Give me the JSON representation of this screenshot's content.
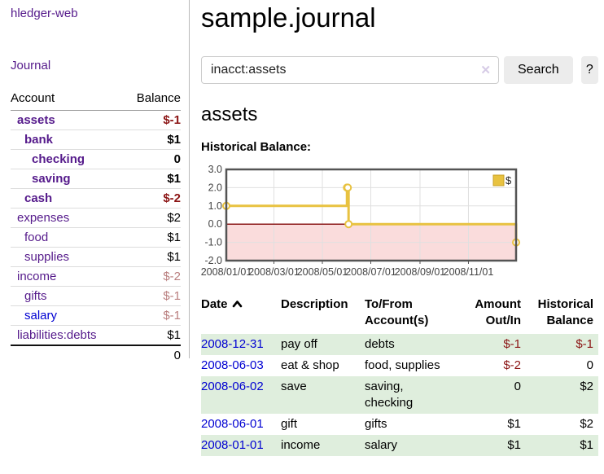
{
  "sidebar": {
    "brand": "hledger-web",
    "journal_link": "Journal",
    "columns": {
      "account": "Account",
      "balance": "Balance"
    },
    "accounts": [
      {
        "name": "assets",
        "indent": 1,
        "balance": "$-1",
        "bold": true,
        "amount_style": "negative-strong",
        "link_color": "purple"
      },
      {
        "name": "bank",
        "indent": 2,
        "balance": "$1",
        "bold": true,
        "amount_style": "normal",
        "link_color": "purple"
      },
      {
        "name": "checking",
        "indent": 3,
        "balance": "0",
        "bold": true,
        "amount_style": "normal",
        "link_color": "purple"
      },
      {
        "name": "saving",
        "indent": 3,
        "balance": "$1",
        "bold": true,
        "amount_style": "normal",
        "link_color": "purple"
      },
      {
        "name": "cash",
        "indent": 2,
        "balance": "$-2",
        "bold": true,
        "amount_style": "negative-strong",
        "link_color": "purple"
      },
      {
        "name": "expenses",
        "indent": 1,
        "balance": "$2",
        "bold": false,
        "amount_style": "normal",
        "link_color": "purple"
      },
      {
        "name": "food",
        "indent": 2,
        "balance": "$1",
        "bold": false,
        "amount_style": "normal",
        "link_color": "purple"
      },
      {
        "name": "supplies",
        "indent": 2,
        "balance": "$1",
        "bold": false,
        "amount_style": "normal",
        "link_color": "purple"
      },
      {
        "name": "income",
        "indent": 1,
        "balance": "$-2",
        "bold": false,
        "amount_style": "negative-soft",
        "link_color": "purple"
      },
      {
        "name": "gifts",
        "indent": 2,
        "balance": "$-1",
        "bold": false,
        "amount_style": "negative-soft",
        "link_color": "purple"
      },
      {
        "name": "salary",
        "indent": 2,
        "balance": "$-1",
        "bold": false,
        "amount_style": "negative-soft",
        "link_color": "blue"
      },
      {
        "name": "liabilities:debts",
        "indent": 1,
        "balance": "$1",
        "bold": false,
        "amount_style": "normal",
        "link_color": "purple"
      }
    ],
    "total": "0"
  },
  "header": {
    "title": "sample.journal"
  },
  "search": {
    "value": "inacct:assets",
    "clear_icon": "✕",
    "button_label": "Search",
    "help_label": "?"
  },
  "account_page": {
    "heading": "assets",
    "chart_label": "Historical Balance:"
  },
  "chart_data": {
    "type": "line",
    "title": "Historical Balance:",
    "step": true,
    "x_type": "date",
    "xlim": [
      "2008-01-01",
      "2008-12-31"
    ],
    "x_domain_days": [
      0,
      365
    ],
    "ylim": [
      -2,
      3
    ],
    "yticks": [
      3.0,
      2.0,
      1.0,
      0.0,
      -1.0,
      -2.0
    ],
    "xticks": [
      {
        "label": "2008/01/01",
        "day": 0
      },
      {
        "label": "2008/03/01",
        "day": 60
      },
      {
        "label": "2008/05/01",
        "day": 121
      },
      {
        "label": "2008/07/01",
        "day": 182
      },
      {
        "label": "2008/09/01",
        "day": 244
      },
      {
        "label": "2008/11/01",
        "day": 305
      }
    ],
    "series": [
      {
        "name": "$",
        "color": "#e8c240",
        "marker_fill": "#ffffff",
        "points": [
          {
            "date": "2008-01-01",
            "day": 0,
            "value": 1
          },
          {
            "date": "2008-06-01",
            "day": 152,
            "value": 2
          },
          {
            "date": "2008-06-02",
            "day": 153,
            "value": 2
          },
          {
            "date": "2008-06-03",
            "day": 154,
            "value": 0
          },
          {
            "date": "2008-12-31",
            "day": 365,
            "value": -1
          }
        ]
      }
    ],
    "negative_region": {
      "ymin": -2,
      "ymax": 0,
      "fill": "#fadcdc",
      "boundary_color": "#8b1a1a"
    },
    "legend": {
      "position": "top-right",
      "label": "$",
      "swatch_color": "#e8c240",
      "swatch_border": "#c9a227"
    },
    "grid": true,
    "plot_border_color": "#545454",
    "grid_color": "#e0e0e0",
    "tick_label_color": "#444444"
  },
  "register": {
    "columns": [
      {
        "label": "Date",
        "align": "left",
        "sorted": "asc"
      },
      {
        "label": "Description",
        "align": "left"
      },
      {
        "label": "To/From Account(s)",
        "align": "left"
      },
      {
        "label": "Amount Out/In",
        "align": "right"
      },
      {
        "label": "Historical Balance",
        "align": "right"
      }
    ],
    "rows": [
      {
        "date": "2008-12-31",
        "description": "pay off",
        "accounts": "debts",
        "amount": "$-1",
        "amount_negative": true,
        "balance": "$-1",
        "balance_negative": true
      },
      {
        "date": "2008-06-03",
        "description": "eat & shop",
        "accounts": "food, supplies",
        "amount": "$-2",
        "amount_negative": true,
        "balance": "0",
        "balance_negative": false
      },
      {
        "date": "2008-06-02",
        "description": "save",
        "accounts": "saving, checking",
        "amount": "0",
        "amount_negative": false,
        "balance": "$2",
        "balance_negative": false
      },
      {
        "date": "2008-06-01",
        "description": "gift",
        "accounts": "gifts",
        "amount": "$1",
        "amount_negative": false,
        "balance": "$2",
        "balance_negative": false
      },
      {
        "date": "2008-01-01",
        "description": "income",
        "accounts": "salary",
        "amount": "$1",
        "amount_negative": false,
        "balance": "$1",
        "balance_negative": false
      }
    ]
  }
}
